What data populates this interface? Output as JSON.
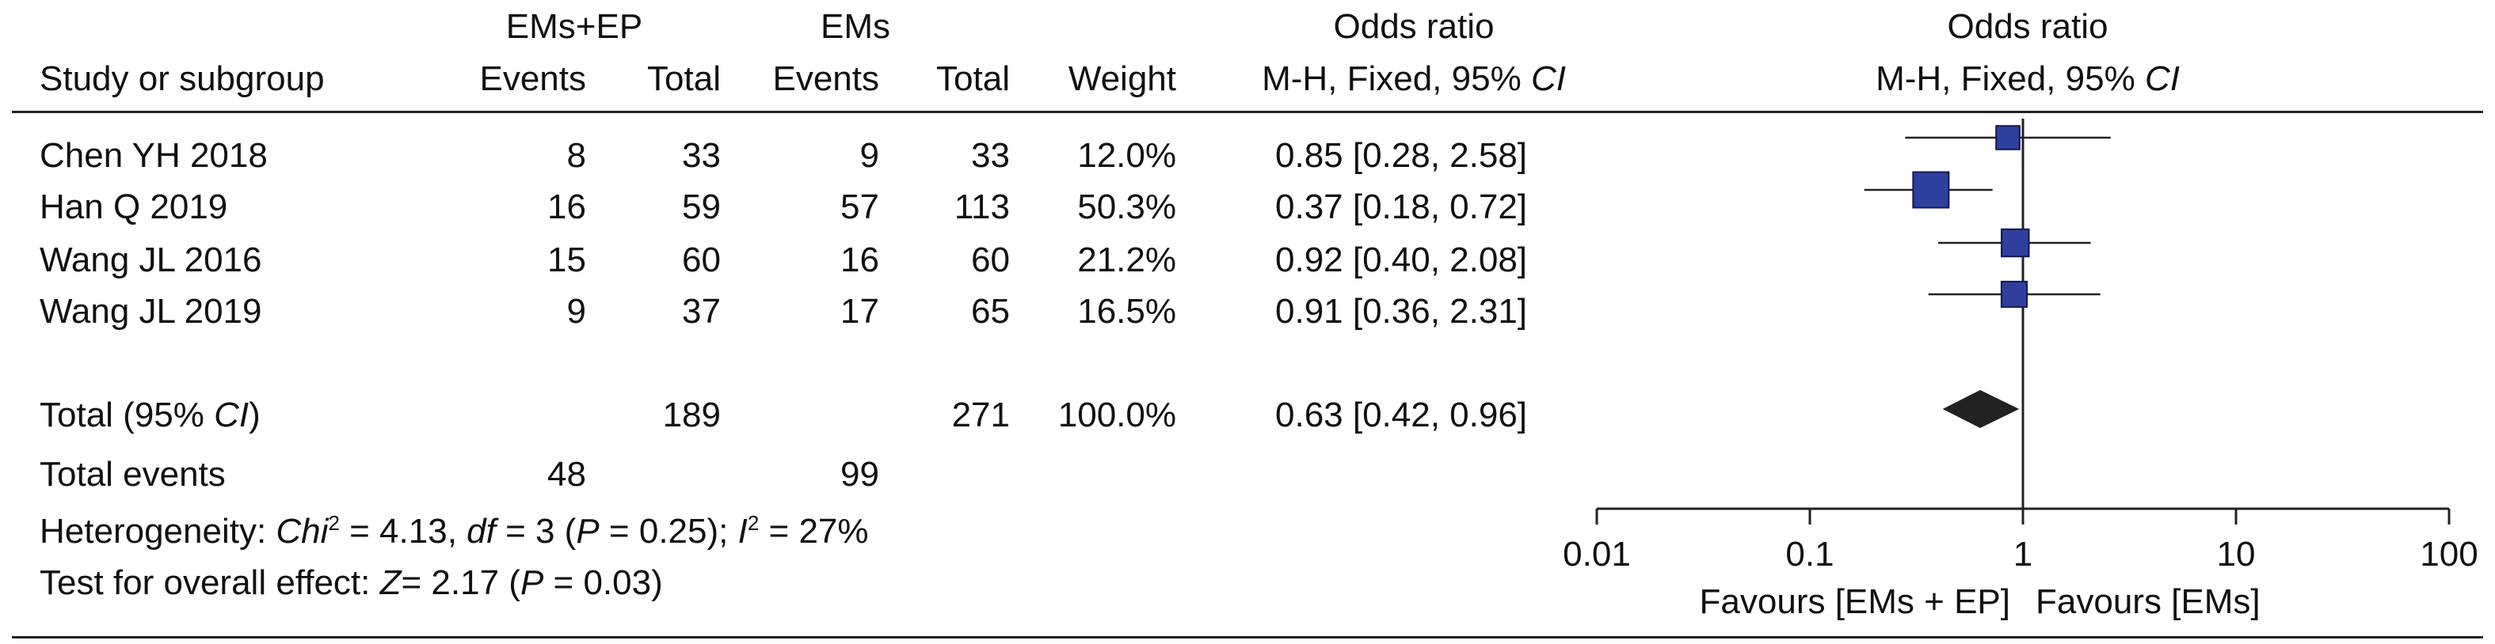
{
  "header": {
    "group_exp": "EMs+EP",
    "group_ctrl": "EMs",
    "col_study": "Study or subgroup",
    "col_events": "Events",
    "col_total": "Total",
    "col_weight": "Weight",
    "col_or_title": "Odds ratio",
    "col_or_method": "M-H, Fixed, 95%",
    "ci_abbrev": "CI",
    "plot_title": "Odds ratio",
    "plot_method": "M-H, Fixed, 95%"
  },
  "studies": [
    {
      "name": "Chen YH 2018",
      "exp_events": "8",
      "exp_total": "33",
      "ctrl_events": "9",
      "ctrl_total": "33",
      "weight": "12.0%",
      "or_text": "0.85 [0.28, 2.58]"
    },
    {
      "name": "Han Q 2019",
      "exp_events": "16",
      "exp_total": "59",
      "ctrl_events": "57",
      "ctrl_total": "113",
      "weight": "50.3%",
      "or_text": "0.37 [0.18, 0.72]"
    },
    {
      "name": "Wang JL 2016",
      "exp_events": "15",
      "exp_total": "60",
      "ctrl_events": "16",
      "ctrl_total": "60",
      "weight": "21.2%",
      "or_text": "0.92 [0.40, 2.08]"
    },
    {
      "name": "Wang JL 2019",
      "exp_events": "9",
      "exp_total": "37",
      "ctrl_events": "17",
      "ctrl_total": "65",
      "weight": "16.5%",
      "or_text": "0.91 [0.36, 2.31]"
    }
  ],
  "total": {
    "label_prefix": "Total (95%",
    "label_ci": "CI",
    "label_suffix": ")",
    "exp_total": "189",
    "ctrl_total": "271",
    "weight": "100.0%",
    "or_text": "0.63 [0.42, 0.96]"
  },
  "total_events": {
    "label": "Total events",
    "exp": "48",
    "ctrl": "99"
  },
  "heterogeneity": {
    "prefix": "Heterogeneity: ",
    "chi": "Chi",
    "chi_sup": "2",
    "chi_val": " = 4.13, ",
    "df": "df",
    "df_val": " = 3 (",
    "p": "P",
    "p_val": " = 0.25); ",
    "i": "I",
    "i_sup": "2",
    "i_val": " = 27%"
  },
  "overall_effect": {
    "prefix": "Test for overall effect: ",
    "z": "Z",
    "z_val": "= 2.17 (",
    "p": "P",
    "p_val": " = 0.03)"
  },
  "colors": {
    "square": "#2e3f9e",
    "diamond": "#222222",
    "line": "#222222"
  },
  "chart_data": {
    "type": "scatter",
    "scale": "log",
    "xlim": [
      0.01,
      100
    ],
    "null_value": 1,
    "tick_labels": [
      "0.01",
      "0.1",
      "1",
      "10",
      "100"
    ],
    "tick_values": [
      0.01,
      0.1,
      1,
      10,
      100
    ],
    "favours_left": "Favours [EMs + EP]",
    "favours_right": "Favours [EMs]",
    "points": [
      {
        "or": 0.85,
        "lo": 0.28,
        "hi": 2.58,
        "weight": 12.0
      },
      {
        "or": 0.37,
        "lo": 0.18,
        "hi": 0.72,
        "weight": 50.3
      },
      {
        "or": 0.92,
        "lo": 0.4,
        "hi": 2.08,
        "weight": 21.2
      },
      {
        "or": 0.91,
        "lo": 0.36,
        "hi": 2.31,
        "weight": 16.5
      }
    ],
    "pooled": {
      "or": 0.63,
      "lo": 0.42,
      "hi": 0.96
    }
  }
}
